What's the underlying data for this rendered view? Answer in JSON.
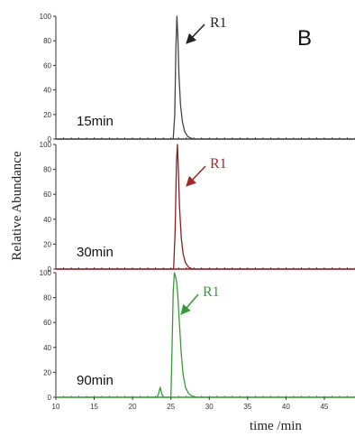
{
  "panel_label": "B",
  "chart_data": {
    "type": "line",
    "ylabel": "Relative Abundance",
    "xlabel": "time /min",
    "xlim": [
      10,
      49
    ],
    "ylim": [
      0,
      100
    ],
    "x_ticks": [
      10,
      15,
      20,
      25,
      30,
      35,
      40,
      45
    ],
    "y_ticks": [
      0,
      20,
      40,
      60,
      80,
      100
    ],
    "grid": false,
    "series": [
      {
        "name": "15min",
        "color": "#444444",
        "annotation": "R1",
        "points": [
          [
            10,
            0
          ],
          [
            25.3,
            0
          ],
          [
            25.5,
            20
          ],
          [
            25.65,
            75
          ],
          [
            25.78,
            100
          ],
          [
            25.9,
            85
          ],
          [
            26.05,
            52
          ],
          [
            26.25,
            28
          ],
          [
            26.5,
            14
          ],
          [
            26.8,
            6
          ],
          [
            27.2,
            2
          ],
          [
            27.7,
            0.5
          ],
          [
            28.2,
            0
          ],
          [
            49,
            0
          ]
        ]
      },
      {
        "name": "30min",
        "color": "#8b1f1f",
        "annotation": "R1",
        "points": [
          [
            10,
            0
          ],
          [
            25.35,
            0
          ],
          [
            25.55,
            30
          ],
          [
            25.72,
            85
          ],
          [
            25.85,
            100
          ],
          [
            25.97,
            80
          ],
          [
            26.12,
            50
          ],
          [
            26.35,
            25
          ],
          [
            26.6,
            12
          ],
          [
            26.9,
            5
          ],
          [
            27.3,
            1.5
          ],
          [
            27.8,
            0
          ],
          [
            49,
            0
          ]
        ]
      },
      {
        "name": "90min",
        "color": "#3a9a3a",
        "annotation": "R1",
        "points": [
          [
            10,
            0
          ],
          [
            23.2,
            0
          ],
          [
            23.4,
            3
          ],
          [
            23.6,
            8
          ],
          [
            23.8,
            3
          ],
          [
            24.0,
            0
          ],
          [
            25.0,
            0
          ],
          [
            25.15,
            40
          ],
          [
            25.3,
            85
          ],
          [
            25.45,
            100
          ],
          [
            25.6,
            97
          ],
          [
            25.75,
            92
          ],
          [
            25.9,
            82
          ],
          [
            26.1,
            60
          ],
          [
            26.35,
            35
          ],
          [
            26.6,
            18
          ],
          [
            26.9,
            8
          ],
          [
            27.3,
            3
          ],
          [
            27.8,
            0.8
          ],
          [
            28.4,
            0
          ],
          [
            49,
            0
          ]
        ]
      }
    ]
  }
}
